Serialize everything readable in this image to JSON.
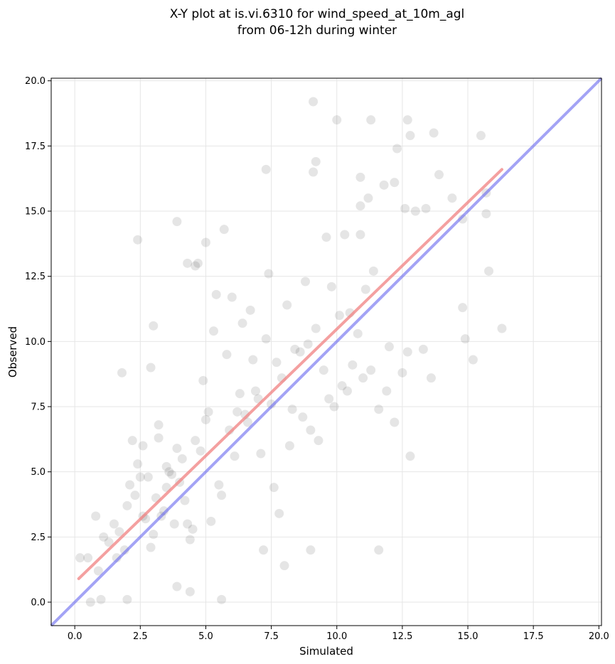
{
  "chart_data": {
    "type": "scatter",
    "title": "X-Y plot at is.vi.6310 for wind_speed_at_10m_agl",
    "subtitle": "from 06-12h during winter",
    "xlabel": "Simulated",
    "ylabel": "Observed",
    "xlim": [
      -0.9,
      20.1
    ],
    "ylim": [
      -0.9,
      20.1
    ],
    "xticks": [
      "0.0",
      "2.5",
      "5.0",
      "7.5",
      "10.0",
      "12.5",
      "15.0",
      "17.5",
      "20.0"
    ],
    "yticks": [
      "0.0",
      "2.5",
      "5.0",
      "7.5",
      "10.0",
      "12.5",
      "15.0",
      "17.5",
      "20.0"
    ],
    "grid": true,
    "point_color": "#000000",
    "regression_line": {
      "color": "#f08080",
      "x": [
        0.15,
        16.3
      ],
      "y": [
        0.9,
        16.6
      ]
    },
    "identity_line": {
      "color": "#6666ee",
      "x": [
        -0.9,
        20.1
      ],
      "y": [
        -0.9,
        20.1
      ]
    },
    "series": [
      {
        "x": [
          9.1,
          10.0,
          11.3,
          12.7,
          13.7,
          12.8,
          15.5,
          12.3,
          7.3,
          9.1,
          9.2,
          10.9,
          13.9,
          11.8,
          12.2,
          14.8,
          15.7,
          4.7,
          3.9,
          5.7,
          10.9,
          11.2,
          13.0,
          12.6,
          13.4,
          14.4,
          15.7,
          9.6,
          10.3,
          10.9,
          2.4,
          5.0,
          4.3,
          4.6,
          15.8,
          14.8,
          16.3,
          14.9,
          15.2,
          13.3,
          13.6,
          12.7,
          12.2,
          11.6,
          1.8,
          3.0,
          2.9,
          12.8,
          9.0,
          7.2,
          11.6,
          5.6,
          2.0,
          1.0,
          0.6,
          0.5,
          0.2,
          0.8,
          3.9,
          8.0,
          7.8,
          4.4,
          12.0,
          11.3,
          6.0,
          5.4,
          5.3,
          6.7,
          7.4,
          8.8,
          8.1,
          9.8,
          10.5,
          10.8,
          11.4,
          10.2,
          9.5,
          8.6,
          7.7,
          6.9,
          6.2,
          5.0,
          3.2,
          2.8,
          2.3,
          1.5,
          1.1,
          0.9,
          1.9,
          2.6,
          3.5,
          4.1,
          4.8,
          5.9,
          6.5,
          7.0,
          7.9,
          8.3,
          9.0,
          9.7,
          10.4,
          11.0,
          11.9,
          12.5,
          3.0,
          3.4,
          3.8,
          4.2,
          4.5,
          2.1,
          2.4,
          2.7,
          3.1,
          3.6,
          4.0,
          4.4,
          5.2,
          5.6,
          6.1,
          6.6,
          7.1,
          7.6,
          8.2,
          8.7,
          9.3,
          9.9,
          10.6,
          1.3,
          1.6,
          2.0,
          2.5,
          2.9,
          3.3,
          3.7,
          4.6,
          5.1,
          5.5,
          6.3,
          6.8,
          7.3,
          8.4,
          9.2,
          10.1,
          11.1,
          3.2,
          3.5,
          2.6,
          4.9,
          5.8,
          6.4,
          7.5,
          8.9,
          1.7,
          2.2,
          4.3,
          3.9
        ],
        "y": [
          19.2,
          18.5,
          18.5,
          18.5,
          18.0,
          17.9,
          17.9,
          17.4,
          16.6,
          16.5,
          16.9,
          16.3,
          16.4,
          16.0,
          16.1,
          14.7,
          15.7,
          13.0,
          14.6,
          14.3,
          15.2,
          15.5,
          15.0,
          15.1,
          15.1,
          15.5,
          14.9,
          14.0,
          14.1,
          14.1,
          13.9,
          13.8,
          13.0,
          12.9,
          12.7,
          11.3,
          10.5,
          10.1,
          9.3,
          9.7,
          8.6,
          9.6,
          6.9,
          7.4,
          8.8,
          10.6,
          9.0,
          5.6,
          2.0,
          2.0,
          2.0,
          0.1,
          0.1,
          0.1,
          0.0,
          1.7,
          1.7,
          3.3,
          0.6,
          1.4,
          3.4,
          0.4,
          9.8,
          8.9,
          11.7,
          11.8,
          10.4,
          11.2,
          12.6,
          12.3,
          11.4,
          12.1,
          11.1,
          10.3,
          12.7,
          8.3,
          8.9,
          9.6,
          9.2,
          8.1,
          7.3,
          7.0,
          6.3,
          4.8,
          4.1,
          3.0,
          2.5,
          1.2,
          2.0,
          3.3,
          4.4,
          5.5,
          5.8,
          6.6,
          7.2,
          7.8,
          8.6,
          7.4,
          6.6,
          7.8,
          8.1,
          8.6,
          8.1,
          8.8,
          2.6,
          3.5,
          3.0,
          3.9,
          2.8,
          4.5,
          5.3,
          3.2,
          4.0,
          5.0,
          4.6,
          2.4,
          3.1,
          4.1,
          5.6,
          6.9,
          5.7,
          4.4,
          6.0,
          7.1,
          6.2,
          7.5,
          9.1,
          2.3,
          1.7,
          3.7,
          4.8,
          2.1,
          3.3,
          4.9,
          6.2,
          7.3,
          4.5,
          8.0,
          9.3,
          10.1,
          9.7,
          10.5,
          11.0,
          12.0,
          6.8,
          5.2,
          6.0,
          8.5,
          9.5,
          10.7,
          7.6,
          9.9,
          2.7,
          6.2,
          3.0,
          5.9
        ]
      }
    ]
  }
}
